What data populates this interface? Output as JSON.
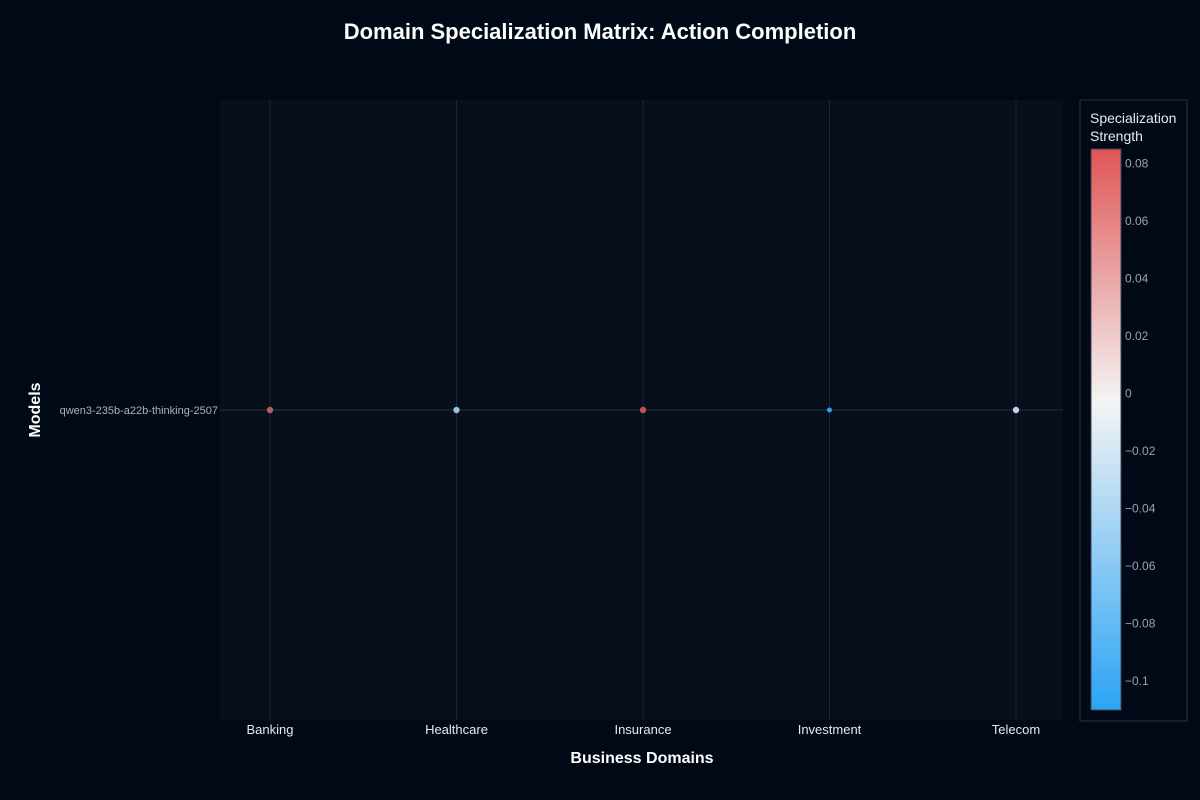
{
  "chart_data": {
    "type": "scatter",
    "title": "Domain Specialization Matrix: Action Completion",
    "xlabel": "Business Domains",
    "ylabel": "Models",
    "categories": [
      "Banking",
      "Healthcare",
      "Insurance",
      "Investment",
      "Telecom"
    ],
    "models": [
      "qwen3-235b-a22b-thinking-2507"
    ],
    "values": [
      [
        0.07,
        -0.045,
        0.075,
        -0.1,
        -0.02
      ]
    ],
    "colorbar": {
      "title_lines": [
        "Specialization",
        "Strength"
      ],
      "range": [
        -0.11,
        0.085
      ],
      "ticks": [
        0.08,
        0.06,
        0.04,
        0.02,
        0,
        -0.02,
        -0.04,
        -0.06,
        -0.08,
        -0.1
      ],
      "tick_labels": [
        "0.08",
        "0.06",
        "0.04",
        "0.02",
        "0",
        "−0.02",
        "−0.04",
        "−0.06",
        "−0.08",
        "−0.1"
      ],
      "colors": [
        "#2ba4f4",
        "#f4f4f4",
        "#e05555"
      ]
    },
    "grid": true,
    "legend": "none"
  },
  "colors": {
    "background": "#010816",
    "plot_background": "#070e1c",
    "grid": "#1c2535"
  }
}
